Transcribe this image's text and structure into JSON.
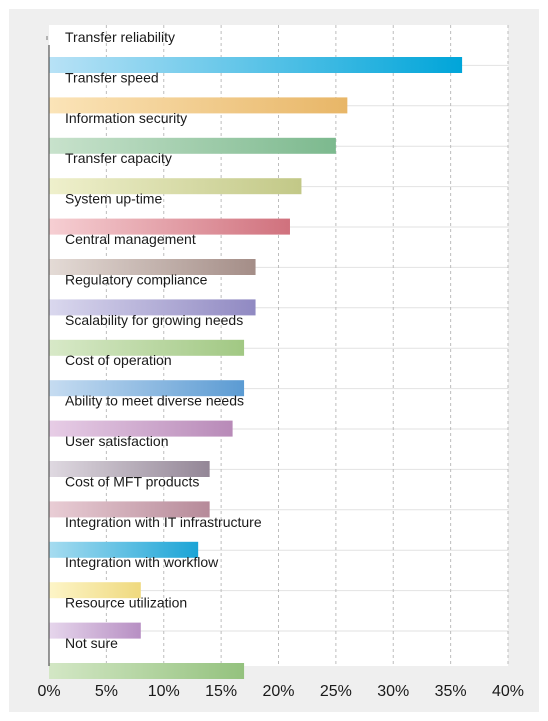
{
  "chart_data": {
    "type": "bar",
    "orientation": "horizontal",
    "title": "",
    "xlabel": "",
    "ylabel": "",
    "xlim": [
      0,
      40
    ],
    "x_ticks": [
      "0%",
      "5%",
      "10%",
      "15%",
      "20%",
      "25%",
      "30%",
      "35%",
      "40%"
    ],
    "grid": "vertical dashed",
    "legend": "none",
    "categories": [
      "Transfer reliability",
      "Transfer speed",
      "Information security",
      "Transfer capacity",
      "System up-time",
      "Central management",
      "Regulatory compliance",
      "Scalability for growing needs",
      "Cost of operation",
      "Ability to meet diverse needs",
      "User satisfaction",
      "Cost of MFT products",
      "Integration with IT infrastructure",
      "Integration with workflow",
      "Resource utilization",
      "Not sure"
    ],
    "values": [
      36,
      26,
      25,
      22,
      21,
      18,
      18,
      17,
      17,
      16,
      14,
      14,
      13,
      8,
      8,
      17
    ],
    "colors": [
      [
        "#b8e2f6",
        "#00a5d9"
      ],
      [
        "#fbe4b8",
        "#e8b667"
      ],
      [
        "#c8e2cc",
        "#7cb98e"
      ],
      [
        "#eff0cc",
        "#c2c887"
      ],
      [
        "#f6cfd3",
        "#d0717d"
      ],
      [
        "#e4dbd6",
        "#a48d87"
      ],
      [
        "#dad8ee",
        "#9089c2"
      ],
      [
        "#d8e9c8",
        "#a1c883"
      ],
      [
        "#c6dcf1",
        "#5b9bd3"
      ],
      [
        "#e7cde6",
        "#b88ab8"
      ],
      [
        "#dfd9e1",
        "#938696"
      ],
      [
        "#e9cdd5",
        "#b68a99"
      ],
      [
        "#a6dcf0",
        "#1ba4d6"
      ],
      [
        "#fdf5c8",
        "#efd97e"
      ],
      [
        "#e6d6ec",
        "#b78fc3"
      ],
      [
        "#d3e7c5",
        "#94c27e"
      ]
    ]
  }
}
